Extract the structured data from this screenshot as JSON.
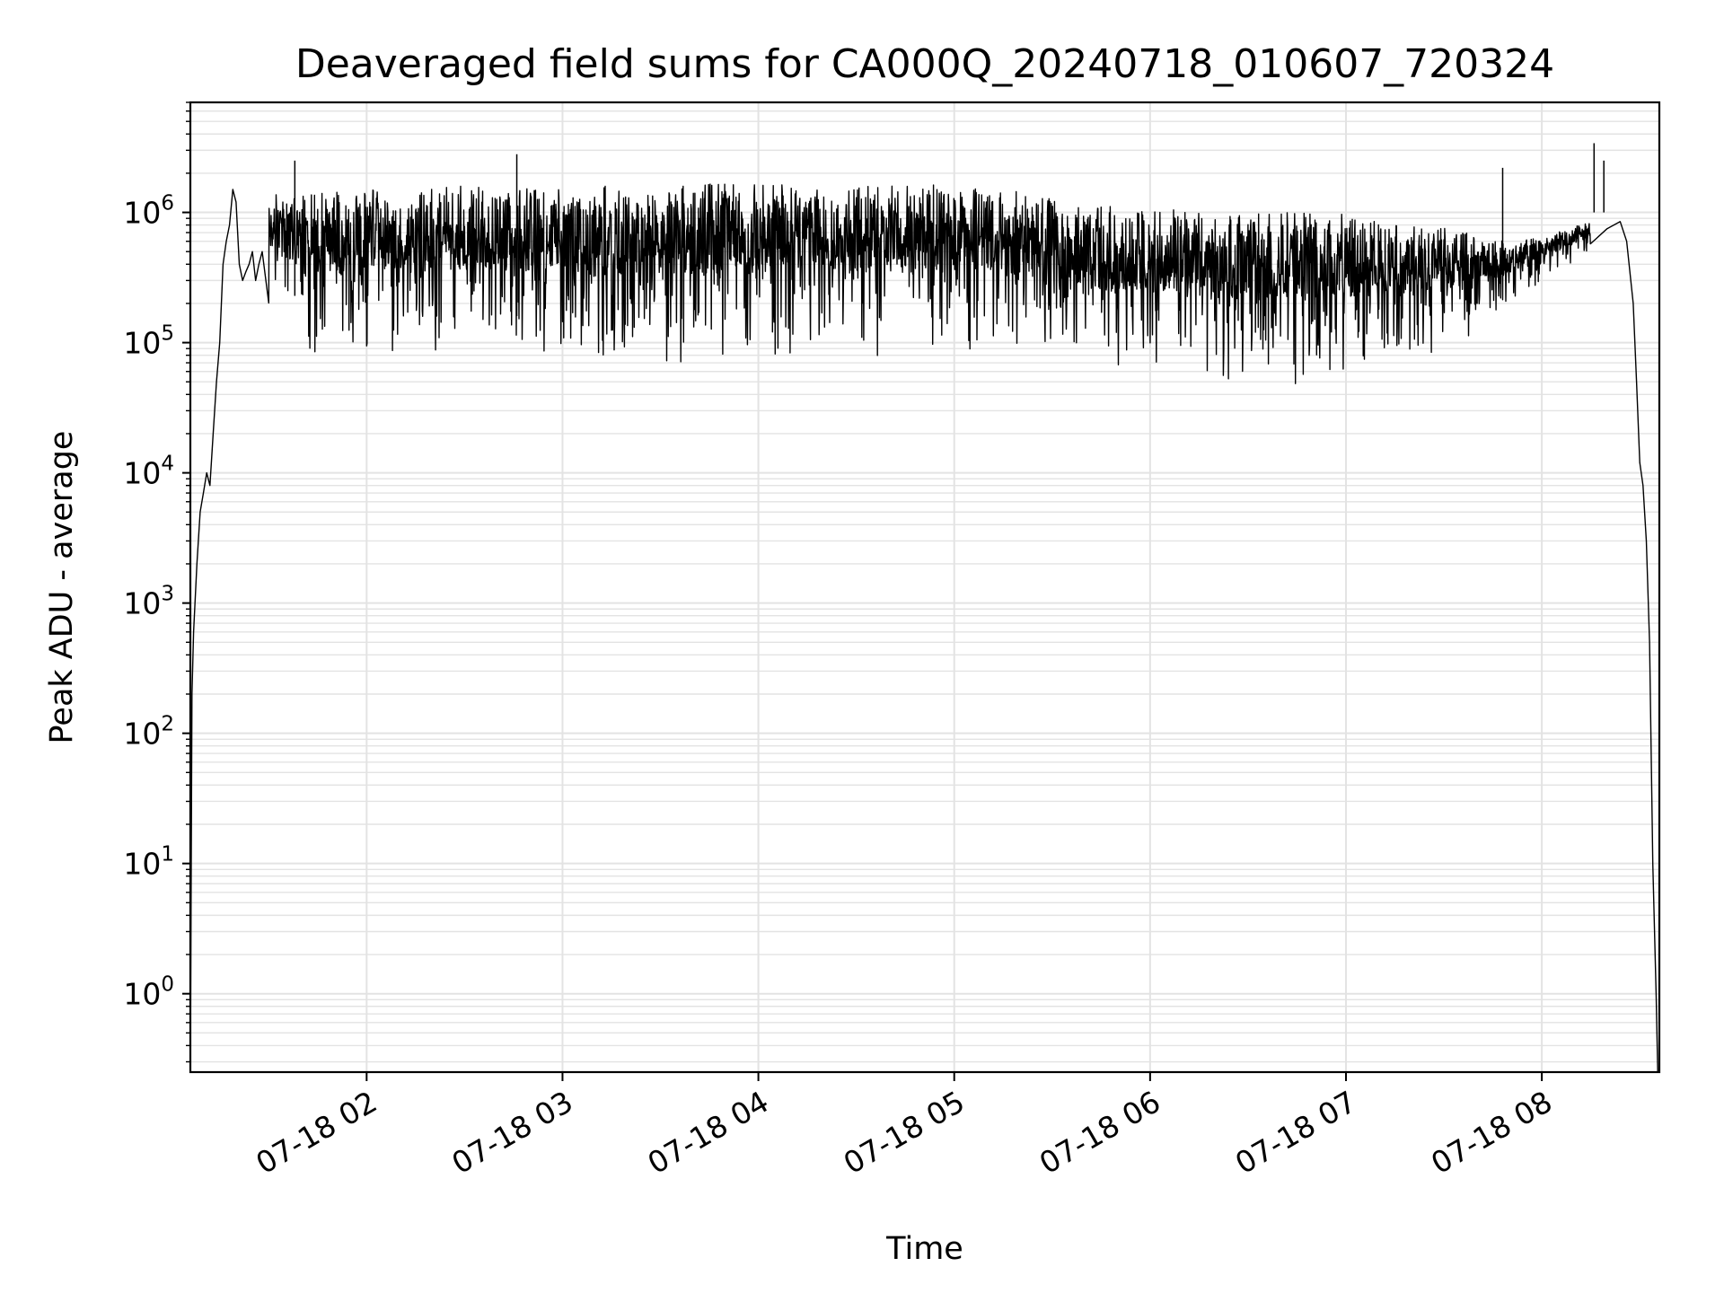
{
  "chart_data": {
    "type": "line",
    "title": "Deaveraged field sums for CA000Q_20240718_010607_720324",
    "xlabel": "Time",
    "ylabel": "Peak ADU - average",
    "yscale": "log",
    "ylim": [
      0.25,
      7000000
    ],
    "xlim": [
      "2024-07-18 01:06:00",
      "2024-07-18 08:36:00"
    ],
    "x_ticks": [
      "07-18 02",
      "07-18 03",
      "07-18 04",
      "07-18 05",
      "07-18 06",
      "07-18 07",
      "07-18 08"
    ],
    "y_ticks": [
      {
        "base": "10",
        "exp": "0"
      },
      {
        "base": "10",
        "exp": "1"
      },
      {
        "base": "10",
        "exp": "2"
      },
      {
        "base": "10",
        "exp": "3"
      },
      {
        "base": "10",
        "exp": "4"
      },
      {
        "base": "10",
        "exp": "5"
      },
      {
        "base": "10",
        "exp": "6"
      }
    ],
    "grid": true,
    "line_color": "#000000",
    "grid_color": "#e3e3e3",
    "series": [
      {
        "x": [
          "01:06:00",
          "01:06:30",
          "01:07:00",
          "01:08:00",
          "01:09:00",
          "01:10:00",
          "01:11:00",
          "01:12:00",
          "01:13:00",
          "01:14:00",
          "01:15:00",
          "01:16:00",
          "01:17:00",
          "01:18:00",
          "01:19:00",
          "01:20:00",
          "01:21:00",
          "01:22:00",
          "01:23:00",
          "01:24:00",
          "01:25:00",
          "01:26:00",
          "01:27:00",
          "01:28:00",
          "01:30:00",
          "01:32:00",
          "01:34:00",
          "01:36:00",
          "01:38:00",
          "01:40:00",
          "01:45:00",
          "01:50:00",
          "02:00:00",
          "02:15:00",
          "02:30:00",
          "02:45:00",
          "03:00:00",
          "03:15:00",
          "03:30:00",
          "03:45:00",
          "04:00:00",
          "04:15:00",
          "04:30:00",
          "04:45:00",
          "05:00:00",
          "05:15:00",
          "05:30:00",
          "05:45:00",
          "06:00:00",
          "06:15:00",
          "06:30:00",
          "06:45:00",
          "07:00:00",
          "07:15:00",
          "07:30:00",
          "07:45:00",
          "08:00:00",
          "08:05:00",
          "08:10:00",
          "08:15:00",
          "08:20:00",
          "08:24:00",
          "08:26:00",
          "08:28:00",
          "08:29:00",
          "08:30:00",
          "08:31:00",
          "08:32:00",
          "08:33:00",
          "08:34:00",
          "08:35:00",
          "08:35:30"
        ],
        "y": [
          0.25,
          200,
          600,
          2000,
          5000,
          7000,
          10000,
          8000,
          20000,
          50000,
          100000,
          400000,
          600000,
          800000,
          1500000,
          1200000,
          400000,
          300000,
          350000,
          400000,
          500000,
          300000,
          400000,
          500000,
          350000,
          500000,
          300000,
          400000,
          350000,
          300000,
          300000,
          350000,
          380000,
          400000,
          420000,
          430000,
          450000,
          450000,
          460000,
          450000,
          460000,
          440000,
          440000,
          430000,
          420000,
          380000,
          320000,
          250000,
          220000,
          200000,
          180000,
          170000,
          170000,
          180000,
          200000,
          250000,
          350000,
          450000,
          550000,
          650000,
          750000,
          850000,
          600000,
          200000,
          50000,
          12000,
          8000,
          3000,
          500,
          10,
          1,
          0.25
        ]
      }
    ],
    "envelope": {
      "upper": {
        "x": [
          "01:30",
          "01:45",
          "02:00",
          "02:15",
          "02:30",
          "02:45",
          "03:00",
          "03:15",
          "03:30",
          "03:45",
          "04:00",
          "04:15",
          "04:30",
          "04:45",
          "05:00",
          "05:15",
          "05:30",
          "05:45",
          "06:00",
          "06:15",
          "06:30",
          "06:45",
          "07:00",
          "07:15",
          "07:30",
          "07:45",
          "08:00",
          "08:15"
        ],
        "y": [
          1500000,
          1400000,
          1500000,
          1500000,
          1600000,
          1600000,
          1600000,
          1600000,
          1650000,
          1650000,
          1650000,
          1600000,
          1600000,
          1600000,
          1650000,
          1500000,
          1300000,
          1200000,
          1100000,
          1000000,
          1000000,
          1000000,
          1000000,
          800000,
          800000,
          600000,
          650000,
          850000
        ]
      },
      "lower": {
        "x": [
          "01:30",
          "01:45",
          "02:00",
          "02:15",
          "02:30",
          "02:45",
          "03:00",
          "03:15",
          "03:30",
          "03:45",
          "04:00",
          "04:15",
          "04:30",
          "04:45",
          "05:00",
          "05:15",
          "05:30",
          "05:45",
          "06:00",
          "06:15",
          "06:30",
          "06:45",
          "07:00",
          "07:15",
          "07:30",
          "07:45",
          "08:00",
          "08:15"
        ],
        "y": [
          200000,
          70000,
          80000,
          80000,
          80000,
          80000,
          80000,
          70000,
          70000,
          70000,
          70000,
          80000,
          75000,
          80000,
          90000,
          80000,
          70000,
          60000,
          55000,
          50000,
          45000,
          48000,
          50000,
          60000,
          80000,
          150000,
          300000,
          500000
        ]
      },
      "spikes": [
        {
          "x": "01:38",
          "y": 2500000
        },
        {
          "x": "02:46",
          "y": 2800000
        },
        {
          "x": "07:48",
          "y": 2200000
        },
        {
          "x": "08:16",
          "y": 3400000
        },
        {
          "x": "08:19",
          "y": 2500000
        }
      ]
    }
  }
}
